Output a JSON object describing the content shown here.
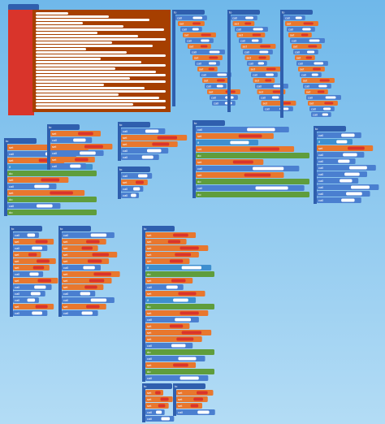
{
  "workspace": {
    "groups": [
      {
        "header": "to",
        "rows": [
          "set",
          "do"
        ]
      },
      {
        "header": "to",
        "rows": [
          "call",
          "set",
          "call",
          "set",
          "call",
          "set",
          "call",
          "set",
          "call",
          "set",
          "call",
          "set",
          "call",
          "set",
          "call",
          "call"
        ]
      },
      {
        "header": "to",
        "rows": [
          "call",
          "set",
          "call",
          "set",
          "call",
          "set",
          "call",
          "set",
          "call",
          "set",
          "call",
          "set",
          "call",
          "set",
          "call",
          "set",
          "call"
        ]
      },
      {
        "header": "to",
        "rows": [
          "call",
          "set",
          "call",
          "set",
          "call",
          "set",
          "call",
          "set",
          "call",
          "set",
          "call",
          "set",
          "call",
          "set",
          "call",
          "set",
          "call",
          "call"
        ]
      },
      {
        "header": "to",
        "rows": [
          "set",
          "call",
          "set",
          "if",
          "do",
          "set",
          "call",
          "set",
          "do",
          "call",
          "do"
        ]
      },
      {
        "header": "to",
        "rows": [
          "set",
          "call",
          "set",
          "call",
          "set",
          "call"
        ]
      },
      {
        "header": "to",
        "rows": [
          "call",
          "set",
          "set",
          "call",
          "call"
        ]
      },
      {
        "header": "to",
        "rows": [
          "call",
          "set",
          "call",
          "call"
        ]
      },
      {
        "header": "to",
        "rows": [
          "call",
          "set",
          "if",
          "set",
          "do",
          "set",
          "call",
          "set",
          "do",
          "call",
          "do"
        ]
      },
      {
        "header": "to",
        "rows": [
          "call",
          "if",
          "set",
          "call",
          "call",
          "call",
          "call",
          "call",
          "call",
          "call",
          "call"
        ]
      },
      {
        "header": "to",
        "rows": [
          "call",
          "set",
          "call",
          "set",
          "set",
          "set",
          "call",
          "set",
          "call",
          "call",
          "call",
          "set",
          "call"
        ]
      },
      {
        "header": "to",
        "rows": [
          "call",
          "set",
          "set",
          "set",
          "set",
          "call",
          "set",
          "set",
          "set",
          "call",
          "call",
          "set",
          "call"
        ]
      },
      {
        "header": "to",
        "rows": [
          "set",
          "set",
          "set",
          "set",
          "set",
          "if",
          "do",
          "set",
          "call",
          "set",
          "if",
          "do",
          "set",
          "call",
          "set",
          "set",
          "set",
          "call",
          "do",
          "call",
          "set",
          "do",
          "call"
        ]
      },
      {
        "header": "to",
        "rows": [
          "set",
          "set",
          "set",
          "call",
          "call"
        ]
      },
      {
        "header": "to",
        "rows": [
          "set",
          "set",
          "set",
          "call"
        ]
      }
    ]
  }
}
